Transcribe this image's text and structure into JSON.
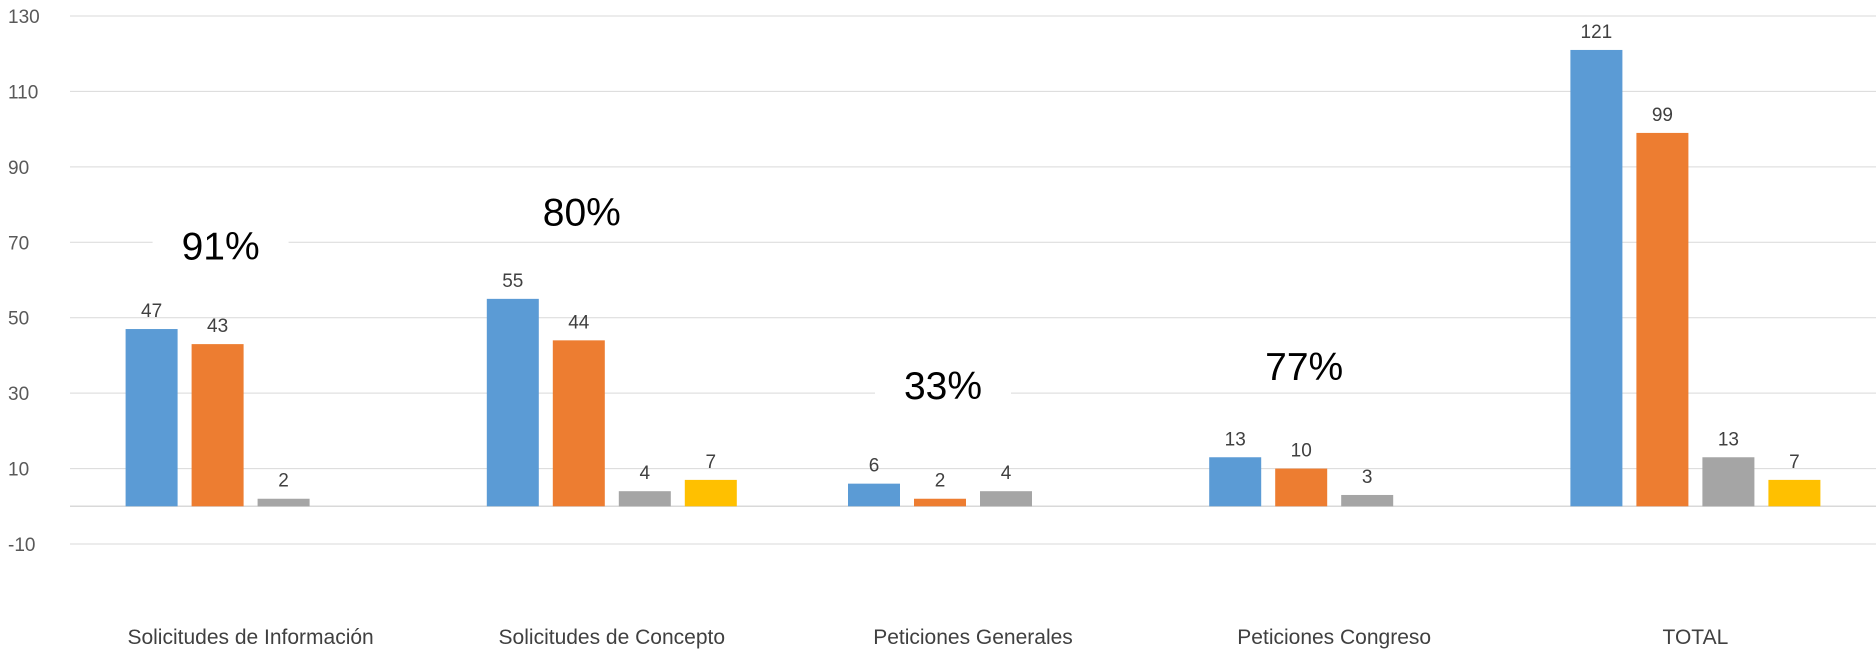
{
  "chart_data": {
    "type": "bar",
    "title": "",
    "xlabel": "",
    "ylabel": "",
    "ylim": [
      -10,
      130
    ],
    "yticks": [
      -10,
      10,
      30,
      50,
      70,
      90,
      110,
      130
    ],
    "grid": true,
    "legend": "none",
    "categories": [
      "Solicitudes de Información",
      "Solicitudes de Concepto",
      "Peticiones Generales",
      "Peticiones Congreso",
      "TOTAL"
    ],
    "series": [
      {
        "color": "#5B9BD5",
        "values": [
          47,
          55,
          6,
          13,
          121
        ]
      },
      {
        "color": "#ED7D31",
        "values": [
          43,
          44,
          2,
          10,
          99
        ]
      },
      {
        "color": "#A5A5A5",
        "values": [
          2,
          4,
          4,
          3,
          13
        ]
      },
      {
        "color": "#FFC000",
        "values": [
          null,
          7,
          null,
          null,
          7
        ]
      }
    ],
    "annotations": [
      "91%",
      "80%",
      "33%",
      "77%",
      null
    ],
    "annotation_values": [
      66,
      75,
      29,
      34,
      null
    ]
  }
}
